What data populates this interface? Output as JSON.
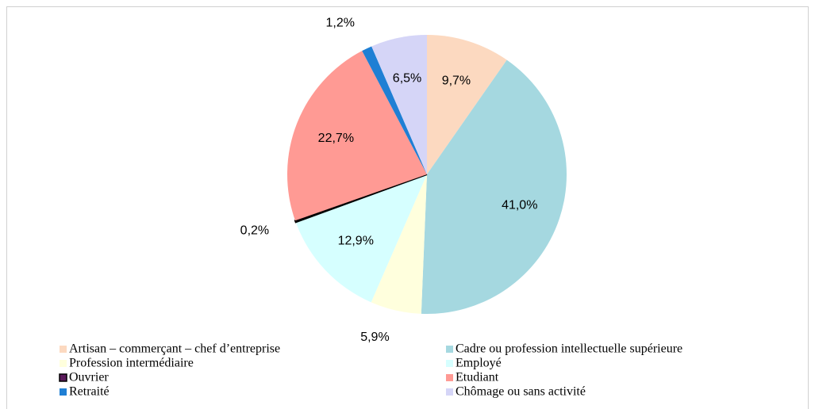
{
  "chart_data": {
    "type": "pie",
    "categories": [
      "Artisan – commerçant – chef d’entreprise",
      "Cadre ou profession intellectuelle supérieure",
      "Profession intermédiaire",
      "Employé",
      "Ouvrier",
      "Etudiant",
      "Retraité",
      "Chômage ou sans activité"
    ],
    "values": [
      9.7,
      41.0,
      5.9,
      12.9,
      0.2,
      22.7,
      1.2,
      6.5
    ],
    "value_labels": [
      "9,7%",
      "41,0%",
      "5,9%",
      "12,9%",
      "0,2%",
      "22,7%",
      "1,2%",
      "6,5%"
    ],
    "colors": [
      "#fcd9c0",
      "#a5d8e0",
      "#ffffdd",
      "#d6ffff",
      "#5a1a5a",
      "#ff9a94",
      "#1f7fd4",
      "#d5d5f7"
    ],
    "legend": "bottom"
  }
}
